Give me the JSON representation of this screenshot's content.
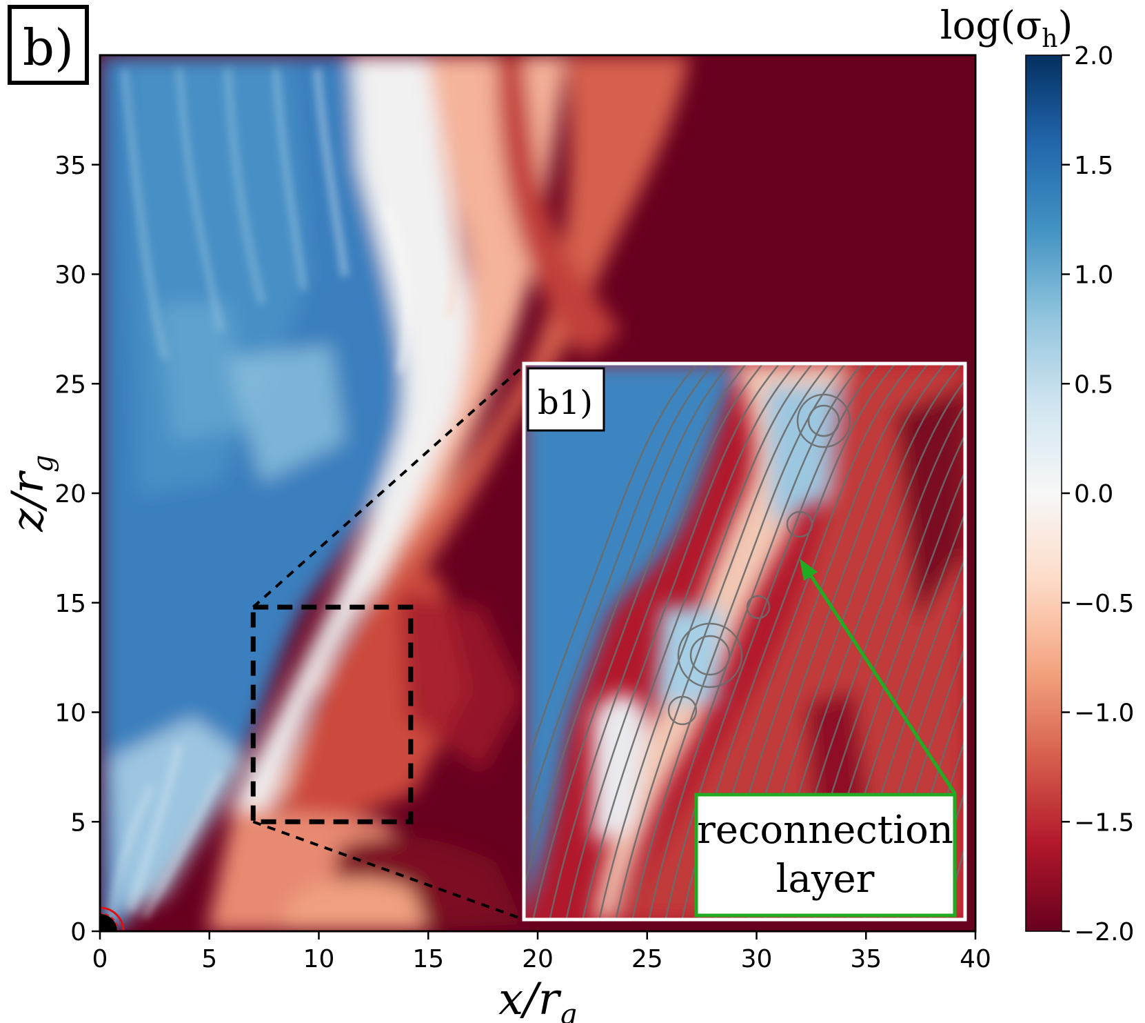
{
  "chart_data": {
    "type": "heatmap",
    "panel_label": "b)",
    "inset_label": "b1)",
    "xlabel": "x/r",
    "xlabel_sub": "g",
    "ylabel": "z/r",
    "ylabel_sub": "g",
    "xlim": [
      0,
      40
    ],
    "ylim": [
      0,
      40
    ],
    "x_ticks": [
      "0",
      "5",
      "10",
      "15",
      "20",
      "25",
      "30",
      "35",
      "40"
    ],
    "x_tick_values": [
      0,
      5,
      10,
      15,
      20,
      25,
      30,
      35,
      40
    ],
    "y_ticks": [
      "0",
      "5",
      "10",
      "15",
      "20",
      "25",
      "30",
      "35"
    ],
    "y_tick_values": [
      0,
      5,
      10,
      15,
      20,
      25,
      30,
      35
    ],
    "colorbar": {
      "title": "log(σ",
      "title_sub": "h",
      "title_end": ")",
      "min": -2.0,
      "max": 2.0,
      "tick_values": [
        2.0,
        1.5,
        1.0,
        0.5,
        0.0,
        -0.5,
        -1.0,
        -1.5,
        -2.0
      ],
      "ticks": [
        "2.0",
        "1.5",
        "1.0",
        "0.5",
        "0.0",
        "−0.5",
        "−1.0",
        "−1.5",
        "−2.0"
      ],
      "colormap": [
        "#67001f",
        "#b2182b",
        "#d6604d",
        "#f4a582",
        "#fddbc7",
        "#f7f7f7",
        "#d1e5f0",
        "#92c5de",
        "#4393c3",
        "#2166ac",
        "#053061"
      ]
    },
    "zoom_box": {
      "x": [
        7,
        14.2
      ],
      "z": [
        5,
        14.8
      ]
    },
    "annotation": {
      "line1": "reconnection",
      "line2": "layer",
      "arrow_color": "#22aa22"
    }
  }
}
